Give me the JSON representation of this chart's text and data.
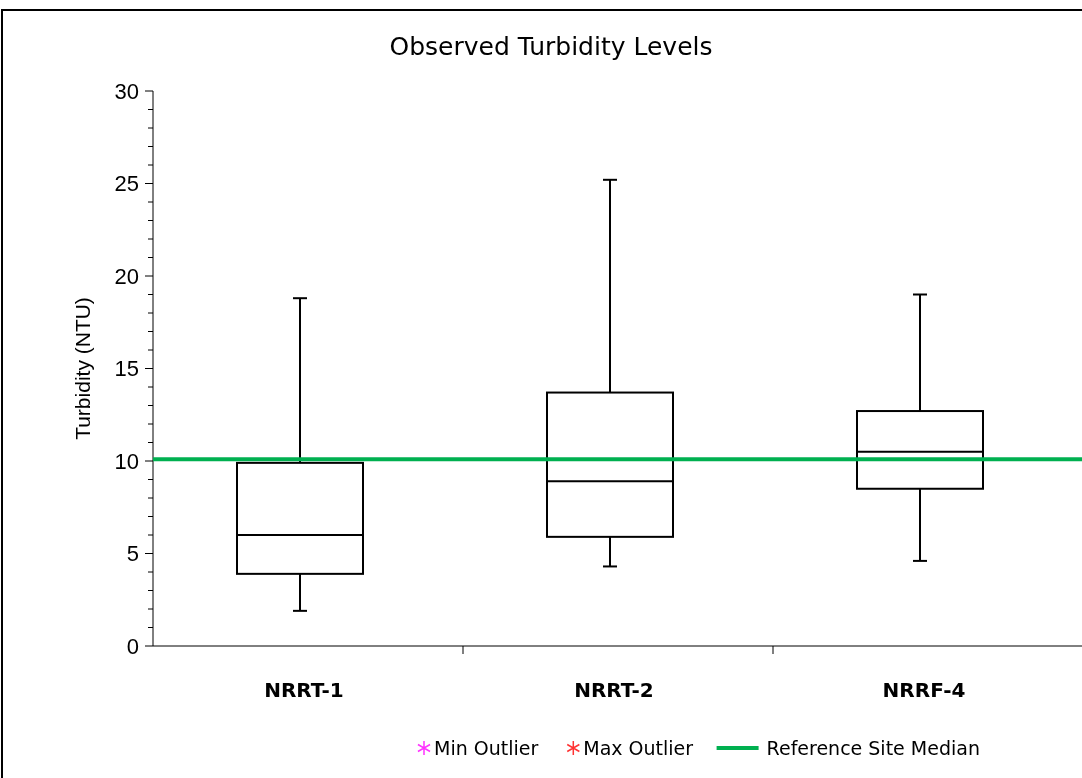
{
  "chart_data": {
    "type": "box",
    "title": "Observed Turbidity Levels",
    "ylabel": "Turbidity (NTU)",
    "categories": [
      "NRRT-1",
      "NRRT-2",
      "NRRF-4"
    ],
    "boxes": [
      {
        "low": 1.9,
        "q1": 3.9,
        "median": 6.0,
        "q3": 9.9,
        "high": 18.8
      },
      {
        "low": 4.3,
        "q1": 5.9,
        "median": 8.9,
        "q3": 13.7,
        "high": 25.2
      },
      {
        "low": 4.6,
        "q1": 8.5,
        "median": 10.5,
        "q3": 12.7,
        "high": 19.0
      }
    ],
    "series": [
      {
        "name": "Min Outlier",
        "type": "scatter",
        "marker": "star",
        "color": "#ff33ff",
        "values": [
          null,
          null,
          null
        ]
      },
      {
        "name": "Max Outlier",
        "type": "scatter",
        "marker": "star",
        "color": "#ff3333",
        "values": [
          null,
          null,
          null
        ]
      }
    ],
    "ref_lines": [
      {
        "axis": "y",
        "value": 10.1,
        "label": "Reference Site Median",
        "color": "#00b050"
      }
    ],
    "ylim": [
      0,
      30
    ],
    "yticks": [
      0,
      5,
      10,
      15,
      20,
      25,
      30
    ],
    "grid": false,
    "legend": "bottom"
  }
}
